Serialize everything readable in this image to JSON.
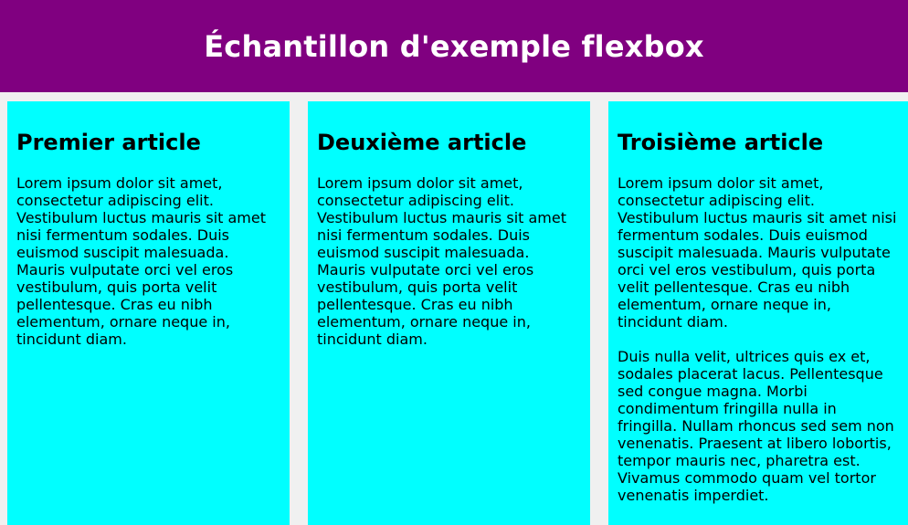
{
  "header": {
    "title": "Échantillon d'exemple flexbox"
  },
  "articles": [
    {
      "title": "Premier article",
      "paragraphs": [
        "Lorem ipsum dolor sit amet, consectetur adipiscing elit. Vestibulum luctus mauris sit amet nisi fermentum sodales. Duis euismod suscipit malesuada. Mauris vulputate orci vel eros vestibulum, quis porta velit pellentesque. Cras eu nibh elementum, ornare neque in, tincidunt diam."
      ]
    },
    {
      "title": "Deuxième article",
      "paragraphs": [
        "Lorem ipsum dolor sit amet, consectetur adipiscing elit. Vestibulum luctus mauris sit amet nisi fermentum sodales. Duis euismod suscipit malesuada. Mauris vulputate orci vel eros vestibulum, quis porta velit pellentesque. Cras eu nibh elementum, ornare neque in, tincidunt diam."
      ]
    },
    {
      "title": "Troisième article",
      "paragraphs": [
        "Lorem ipsum dolor sit amet, consectetur adipiscing elit. Vestibulum luctus mauris sit amet nisi fermentum sodales. Duis euismod suscipit malesuada. Mauris vulputate orci vel eros vestibulum, quis porta velit pellentesque. Cras eu nibh elementum, ornare neque in, tincidunt diam.",
        "Duis nulla velit, ultrices quis ex et, sodales placerat lacus. Pellentesque sed congue magna. Morbi condimentum fringilla nulla in fringilla. Nullam rhoncus sed sem non venenatis. Praesent at libero lobortis, tempor mauris nec, pharetra est. Vivamus commodo quam vel tortor venenatis imperdiet."
      ]
    }
  ],
  "colors": {
    "header_bg": "#800080",
    "article_bg": "#00ffff",
    "page_bg": "#f0f0f0"
  }
}
